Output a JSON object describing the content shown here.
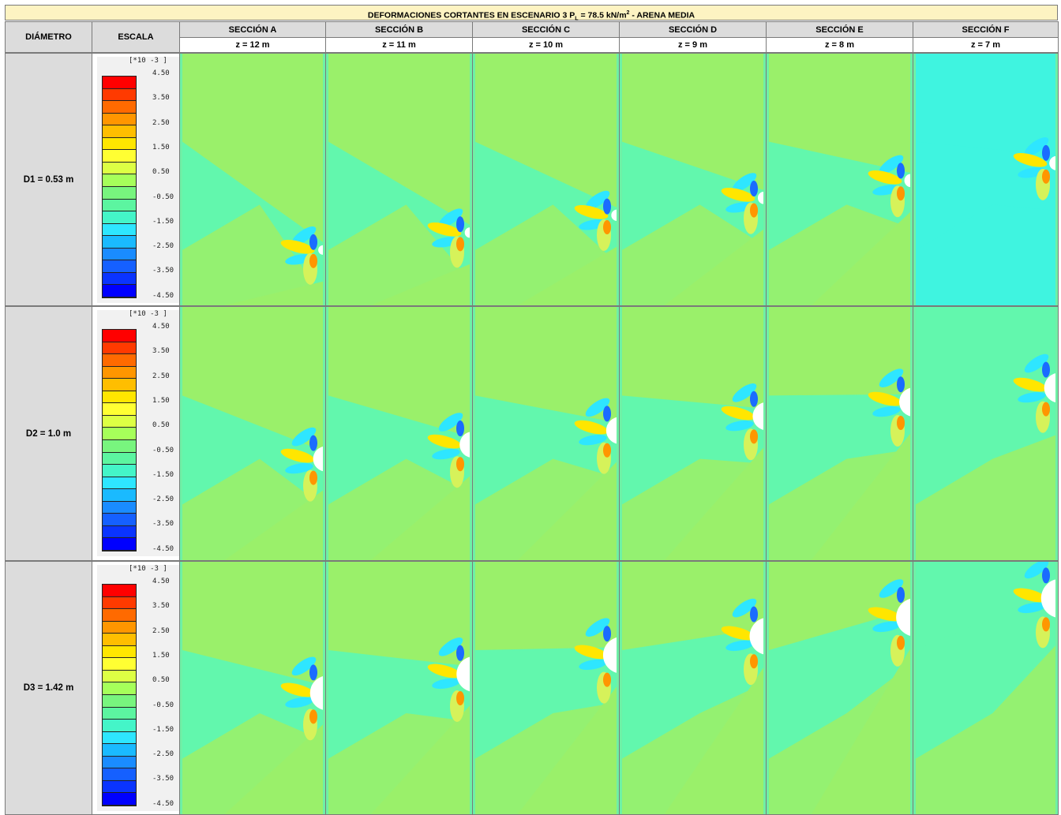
{
  "title": {
    "prefix": "DEFORMACIONES CORTANTES EN ESCENARIO 3  P",
    "sub": "L",
    "mid": " = 78.5 kN/m",
    "sup": "2",
    "suffix": " - ARENA MEDIA"
  },
  "headers": {
    "diameter": "DIÁMETRO",
    "scale": "ESCALA"
  },
  "sections": [
    {
      "name": "SECCIÓN A",
      "depth": "z = 12 m"
    },
    {
      "name": "SECCIÓN B",
      "depth": "z = 11 m"
    },
    {
      "name": "SECCIÓN C",
      "depth": "z = 10 m"
    },
    {
      "name": "SECCIÓN D",
      "depth": "z = 9 m"
    },
    {
      "name": "SECCIÓN E",
      "depth": "z = 8 m"
    },
    {
      "name": "SECCIÓN F",
      "depth": "z = 7 m"
    }
  ],
  "rows": [
    {
      "label": "D1 = 0.53 m"
    },
    {
      "label": "D2 = 1.0 m"
    },
    {
      "label": "D3 = 1.42 m"
    }
  ],
  "legend": {
    "unit": "[*10 -3 ]",
    "ticks": [
      "4.50",
      "3.50",
      "2.50",
      "1.50",
      "0.50",
      "-0.50",
      "-1.50",
      "-2.50",
      "-3.50",
      "-4.50"
    ],
    "colors": [
      "#ff0000",
      "#ff3a00",
      "#ff6a00",
      "#ff9600",
      "#ffbe00",
      "#ffe600",
      "#ffff33",
      "#ddff44",
      "#a6ff5a",
      "#78f57e",
      "#5cf5a0",
      "#44f5c8",
      "#2ee6ff",
      "#1abaff",
      "#1a8cff",
      "#1560ff",
      "#0a34ff",
      "#0000ff"
    ]
  }
}
